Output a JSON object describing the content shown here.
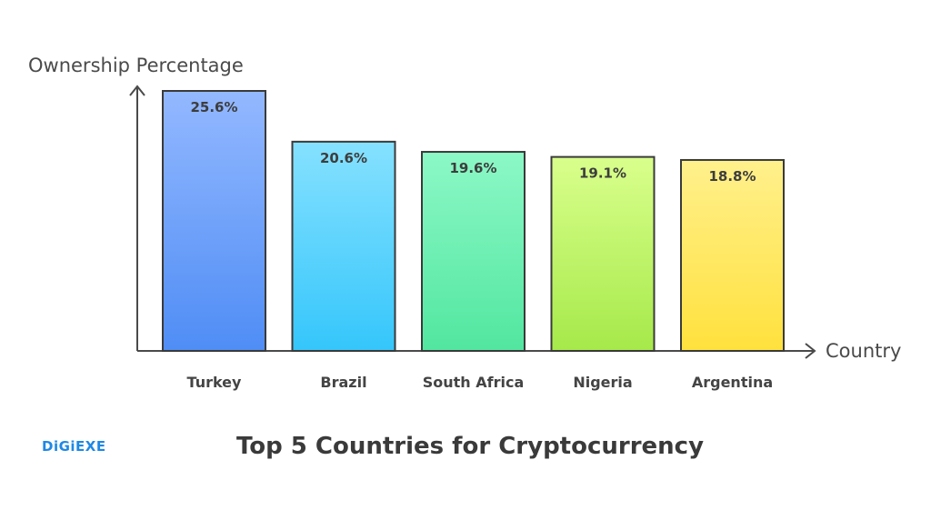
{
  "chart_data": {
    "type": "bar",
    "title": "Top 5 Countries for Cryptocurrency",
    "xlabel": "Country",
    "ylabel": "Ownership Percentage",
    "categories": [
      "Turkey",
      "Brazil",
      "South Africa",
      "Nigeria",
      "Argentina"
    ],
    "values": [
      25.6,
      20.6,
      19.6,
      19.1,
      18.8
    ],
    "data_labels": [
      "25.6%",
      "20.6%",
      "19.6%",
      "19.1%",
      "18.8%"
    ],
    "ylim": [
      0,
      25.6
    ],
    "grid": false,
    "legend": "none"
  },
  "brand": {
    "label": "DiGiEXE",
    "color": "#1e88e5"
  },
  "colors": {
    "bars": [
      {
        "top": "#93b8ff",
        "bottom": "#4f8df5"
      },
      {
        "top": "#86e1ff",
        "bottom": "#35c6fb"
      },
      {
        "top": "#8cf8c6",
        "bottom": "#52e6a0"
      },
      {
        "top": "#d9ff8c",
        "bottom": "#a6e94a"
      },
      {
        "top": "#fff08c",
        "bottom": "#ffe13d"
      }
    ],
    "axis": "#4a4a4a",
    "outline": "#3a3a3a"
  }
}
